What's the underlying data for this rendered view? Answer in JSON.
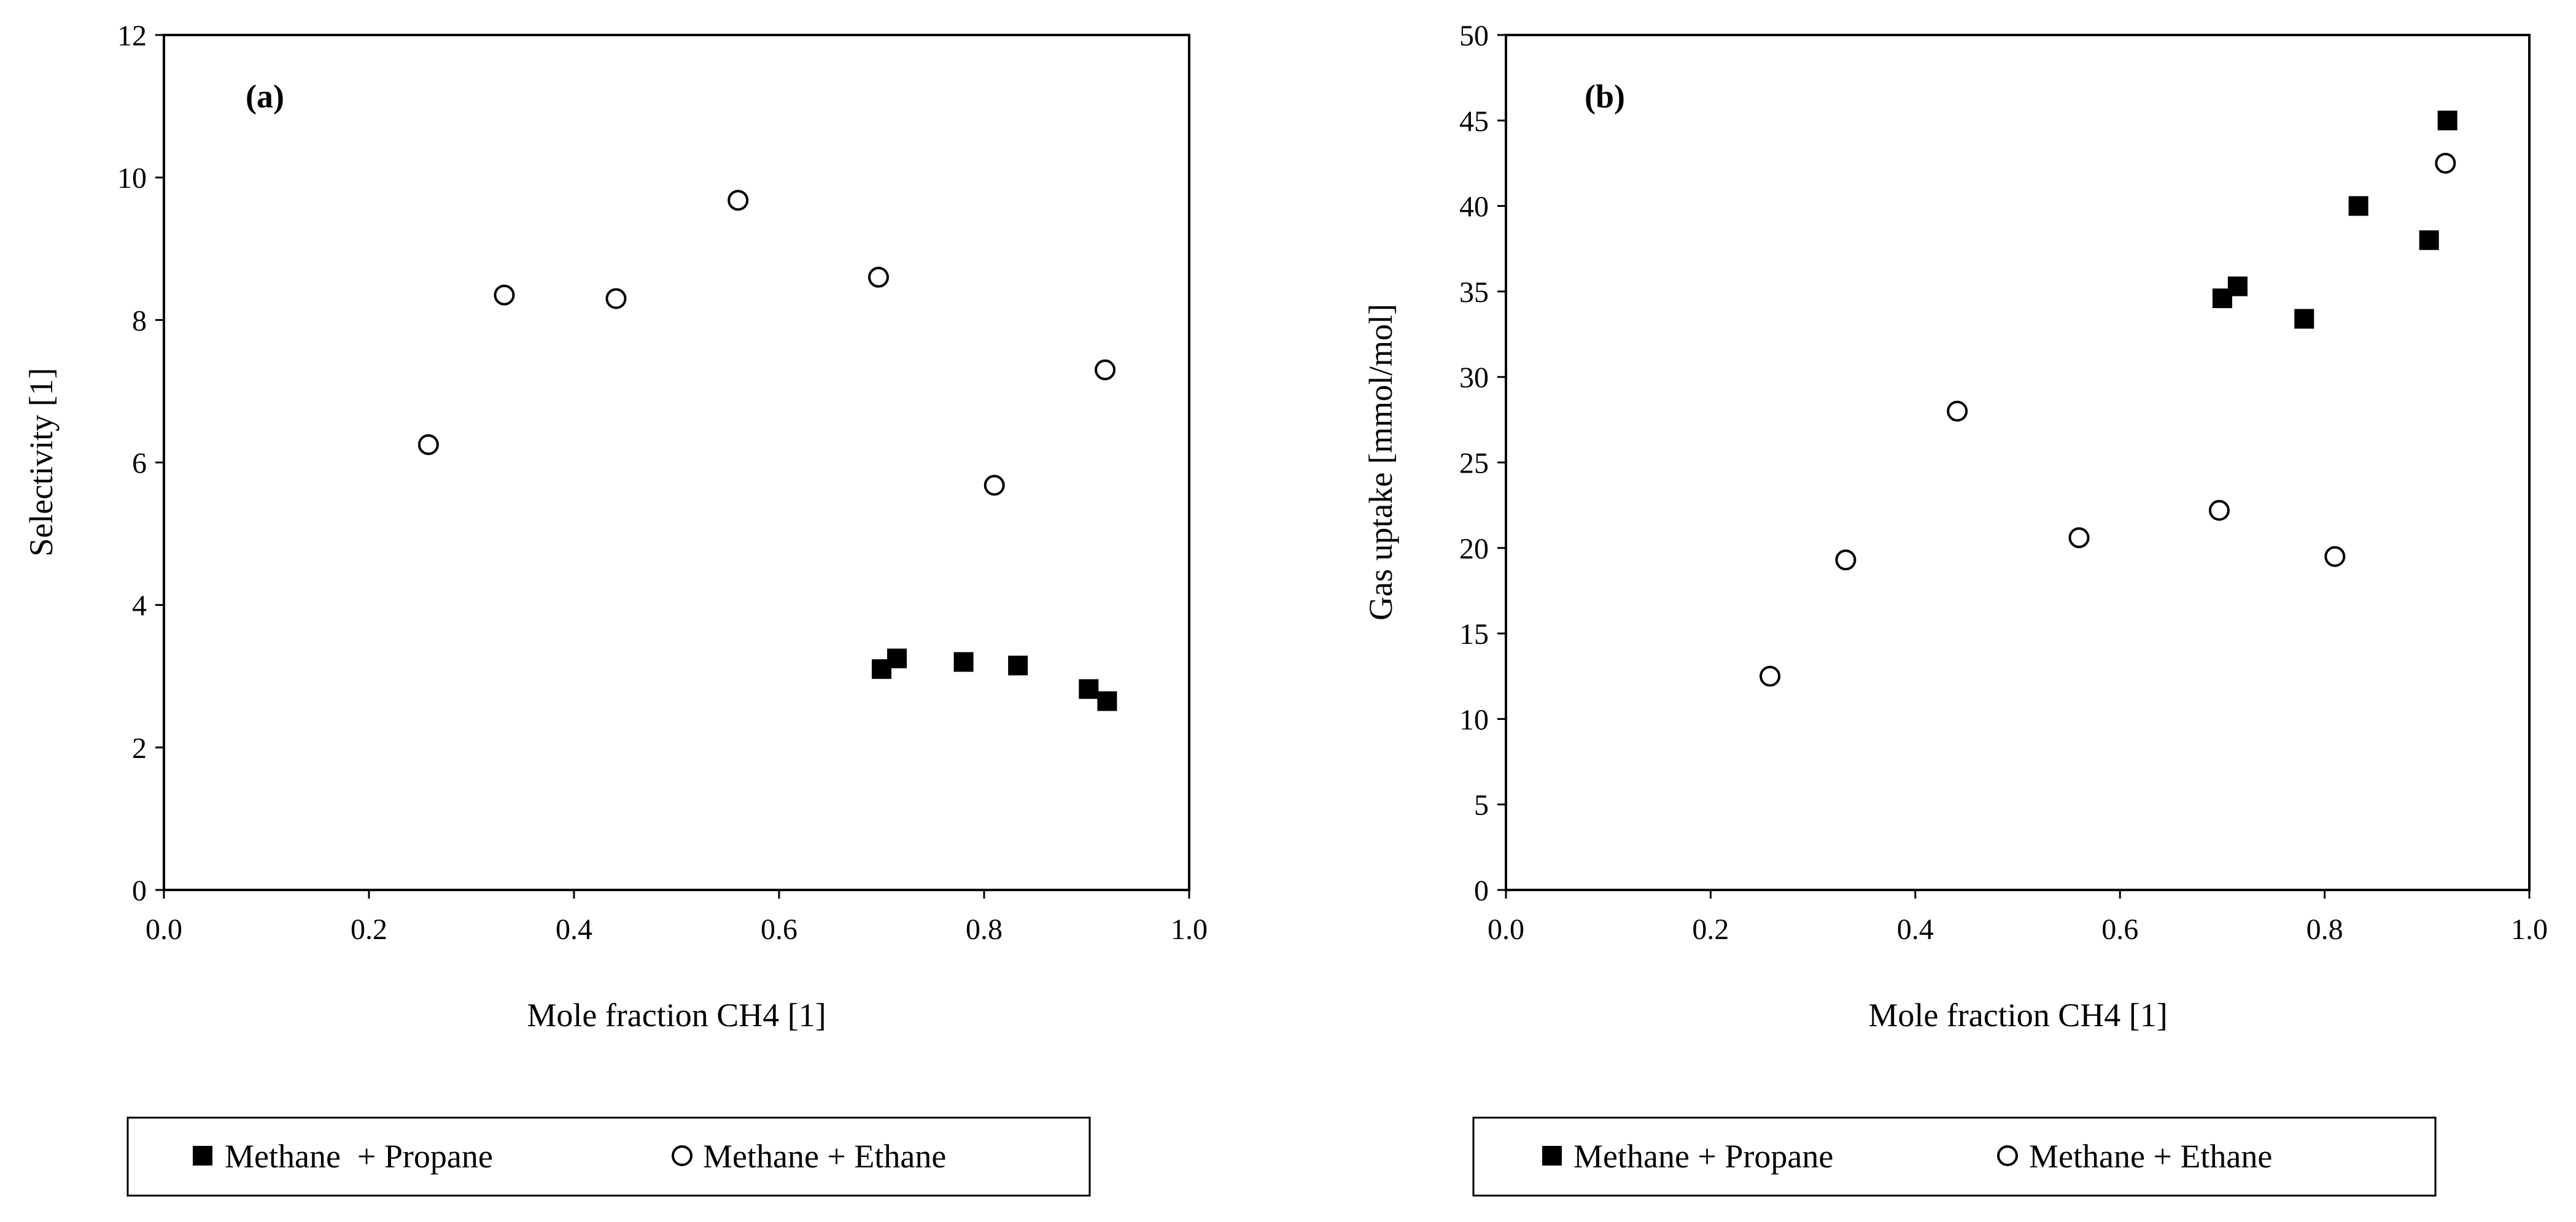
{
  "chart_data": [
    {
      "type": "scatter",
      "panel_label": "(a)",
      "xlabel": "Mole fraction CH4 [1]",
      "ylabel": "Selectivity [1]",
      "xlim": [
        0.0,
        1.0
      ],
      "ylim": [
        0,
        12
      ],
      "xticks": [
        0.0,
        0.2,
        0.4,
        0.6,
        0.8,
        1.0
      ],
      "xtick_labels": [
        "0.0",
        "0.2",
        "0.4",
        "0.6",
        "0.8",
        "1.0"
      ],
      "yticks": [
        0,
        2,
        4,
        6,
        8,
        10,
        12
      ],
      "ytick_labels": [
        "0",
        "2",
        "4",
        "6",
        "8",
        "10",
        "12"
      ],
      "grid": false,
      "legend_position": "bottom",
      "series": [
        {
          "name": "Methane  + Propane",
          "marker": "filled-square",
          "color": "#000000",
          "x": [
            0.7,
            0.715,
            0.78,
            0.833,
            0.902,
            0.92
          ],
          "y": [
            3.1,
            3.25,
            3.2,
            3.15,
            2.82,
            2.65
          ]
        },
        {
          "name": "Methane + Ethane",
          "marker": "open-circle",
          "color": "#000000",
          "x": [
            0.258,
            0.332,
            0.441,
            0.56,
            0.697,
            0.81,
            0.918
          ],
          "y": [
            6.25,
            8.35,
            8.3,
            9.68,
            8.6,
            5.68,
            7.3
          ]
        }
      ]
    },
    {
      "type": "scatter",
      "panel_label": "(b)",
      "xlabel": "Mole fraction CH4 [1]",
      "ylabel": "Gas uptake [mmol/mol]",
      "xlim": [
        0.0,
        1.0
      ],
      "ylim": [
        0,
        50
      ],
      "xticks": [
        0.0,
        0.2,
        0.4,
        0.6,
        0.8,
        1.0
      ],
      "xtick_labels": [
        "0.0",
        "0.2",
        "0.4",
        "0.6",
        "0.8",
        "1.0"
      ],
      "yticks": [
        0,
        5,
        10,
        15,
        20,
        25,
        30,
        35,
        40,
        45,
        50
      ],
      "ytick_labels": [
        "0",
        "5",
        "10",
        "15",
        "20",
        "25",
        "30",
        "35",
        "40",
        "45",
        "50"
      ],
      "grid": false,
      "legend_position": "bottom",
      "series": [
        {
          "name": "Methane + Propane",
          "marker": "filled-square",
          "color": "#000000",
          "x": [
            0.7,
            0.715,
            0.78,
            0.833,
            0.902,
            0.92
          ],
          "y": [
            34.6,
            35.3,
            33.4,
            40.0,
            38.0,
            45.0
          ]
        },
        {
          "name": "Methane + Ethane",
          "marker": "open-circle",
          "color": "#000000",
          "x": [
            0.258,
            0.332,
            0.441,
            0.56,
            0.697,
            0.81,
            0.918
          ],
          "y": [
            12.5,
            19.3,
            28.0,
            20.6,
            22.2,
            19.5,
            42.5
          ]
        }
      ]
    }
  ]
}
